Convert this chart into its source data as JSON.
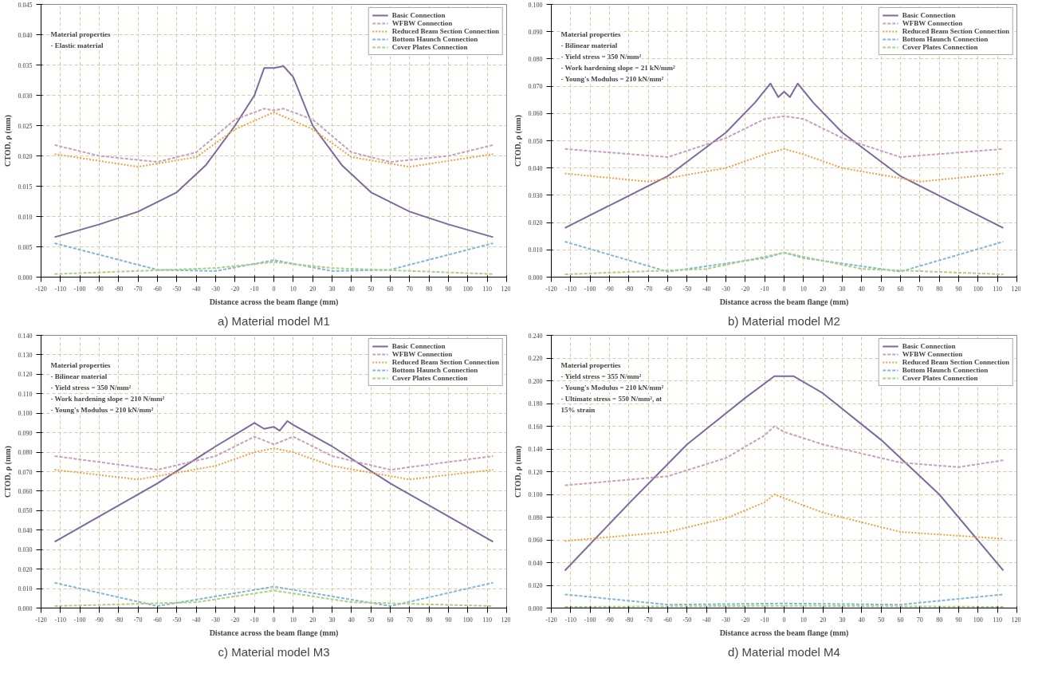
{
  "chart_data": [
    {
      "type": "line",
      "title": "a) Material model M1",
      "xlabel": "Distance across the beam flange (mm)",
      "ylabel": "CTOD, ρ (mm)",
      "annotations": [
        "Material properties",
        "- Elastic material"
      ],
      "xlim": [
        -120,
        120
      ],
      "xticks": [
        -120,
        -110,
        -100,
        -90,
        -80,
        -70,
        -60,
        -50,
        -40,
        -30,
        -20,
        -10,
        0,
        10,
        20,
        30,
        40,
        50,
        60,
        70,
        80,
        90,
        100,
        110,
        120
      ],
      "ylim": [
        0,
        0.045
      ],
      "yticks": [
        {
          "value": 0,
          "label": "0.000"
        },
        {
          "value": 0.005,
          "label": "0.005"
        },
        {
          "value": 0.01,
          "label": "0.010"
        },
        {
          "value": 0.015,
          "label": "0.015"
        },
        {
          "value": 0.02,
          "label": "0.020"
        },
        {
          "value": 0.025,
          "label": "0.025"
        },
        {
          "value": 0.03,
          "label": "0.030"
        },
        {
          "value": 0.035,
          "label": "0.035"
        },
        {
          "value": 0.04,
          "label": "0.040"
        },
        {
          "value": 0.045,
          "label": "0.045"
        }
      ],
      "grid": true,
      "legend": "top right",
      "series": [
        {
          "name": "Basic Connection",
          "color": "#7b6a9b",
          "line_style": "solid",
          "x": [
            -113,
            -90,
            -70,
            -50,
            -35,
            -20,
            -10,
            -5,
            0,
            5,
            10,
            20,
            35,
            50,
            70,
            90,
            113
          ],
          "values": [
            0.0066,
            0.0087,
            0.0108,
            0.014,
            0.0185,
            0.025,
            0.03,
            0.0345,
            0.0345,
            0.0348,
            0.033,
            0.025,
            0.0185,
            0.014,
            0.0108,
            0.0087,
            0.0066
          ]
        },
        {
          "name": "WFBW Connection",
          "color": "#c8a0b8",
          "line_style": "dashed",
          "x": [
            -113,
            -90,
            -60,
            -40,
            -20,
            -5,
            0,
            5,
            20,
            40,
            60,
            90,
            113
          ],
          "values": [
            0.0218,
            0.02,
            0.019,
            0.0206,
            0.026,
            0.0278,
            0.0275,
            0.0278,
            0.026,
            0.0206,
            0.019,
            0.02,
            0.0218
          ]
        },
        {
          "name": "Reduced Beam Section Connection",
          "color": "#f0a040",
          "line_style": "dotted",
          "x": [
            -113,
            -70,
            -40,
            -20,
            0,
            20,
            40,
            70,
            113
          ],
          "values": [
            0.0203,
            0.0182,
            0.0198,
            0.0244,
            0.0272,
            0.0244,
            0.0198,
            0.0182,
            0.0203
          ]
        },
        {
          "name": "Bottom Haunch Connection",
          "color": "#80b8d8",
          "line_style": "dashed",
          "x": [
            -113,
            -60,
            -30,
            0,
            30,
            60,
            113
          ],
          "values": [
            0.0056,
            0.0012,
            0.001,
            0.0028,
            0.001,
            0.0012,
            0.0056
          ]
        },
        {
          "name": "Cover Plates Connection",
          "color": "#a8d080",
          "line_style": "dashed",
          "x": [
            -113,
            -30,
            0,
            30,
            113
          ],
          "values": [
            0.0005,
            0.0015,
            0.0025,
            0.0015,
            0.0005
          ]
        }
      ]
    },
    {
      "type": "line",
      "title": "b) Material model M2",
      "xlabel": "Distance across the beam flange (mm)",
      "ylabel": "CTOD, ρ (mm)",
      "annotations": [
        "Material properties",
        "- Bilinear material",
        "- Yield stress = 350 N/mm²",
        "- Work hardening slope = 21 kN/mm²",
        "- Young's Modulus = 210 kN/mm²"
      ],
      "xlim": [
        -120,
        120
      ],
      "xticks": [
        -120,
        -110,
        -100,
        -90,
        -80,
        -70,
        -60,
        -50,
        -40,
        -30,
        -20,
        -10,
        0,
        10,
        20,
        30,
        40,
        50,
        60,
        70,
        80,
        90,
        100,
        110,
        120
      ],
      "ylim": [
        0,
        0.1
      ],
      "yticks": [
        {
          "value": 0,
          "label": "0.000"
        },
        {
          "value": 0.01,
          "label": "0.010"
        },
        {
          "value": 0.02,
          "label": "0.020"
        },
        {
          "value": 0.03,
          "label": "0.030"
        },
        {
          "value": 0.04,
          "label": "0.040"
        },
        {
          "value": 0.05,
          "label": "0.050"
        },
        {
          "value": 0.06,
          "label": "0.060"
        },
        {
          "value": 0.07,
          "label": "0.070"
        },
        {
          "value": 0.08,
          "label": "0.080"
        },
        {
          "value": 0.09,
          "label": "0.090"
        },
        {
          "value": 0.1,
          "label": "0.100"
        }
      ],
      "grid": true,
      "legend": "top right",
      "series": [
        {
          "name": "Basic Connection",
          "color": "#7b6a9b",
          "line_style": "solid",
          "x": [
            -113,
            -60,
            -30,
            -15,
            -7,
            -3,
            0,
            3,
            7,
            15,
            30,
            60,
            113
          ],
          "values": [
            0.018,
            0.037,
            0.053,
            0.064,
            0.071,
            0.066,
            0.068,
            0.066,
            0.071,
            0.064,
            0.053,
            0.037,
            0.018
          ]
        },
        {
          "name": "WFBW Connection",
          "color": "#c8a0b8",
          "line_style": "dashed",
          "x": [
            -113,
            -60,
            -30,
            -10,
            0,
            10,
            30,
            60,
            113
          ],
          "values": [
            0.047,
            0.044,
            0.051,
            0.058,
            0.059,
            0.058,
            0.051,
            0.044,
            0.047
          ]
        },
        {
          "name": "Reduced Beam Section Connection",
          "color": "#f0a040",
          "line_style": "dotted",
          "x": [
            -113,
            -70,
            -30,
            -10,
            0,
            10,
            30,
            70,
            113
          ],
          "values": [
            0.038,
            0.035,
            0.04,
            0.045,
            0.047,
            0.045,
            0.04,
            0.035,
            0.038
          ]
        },
        {
          "name": "Bottom Haunch Connection",
          "color": "#80b8d8",
          "line_style": "dashed",
          "x": [
            -113,
            -60,
            -10,
            0,
            10,
            60,
            113
          ],
          "values": [
            0.013,
            0.002,
            0.007,
            0.009,
            0.007,
            0.002,
            0.013
          ]
        },
        {
          "name": "Cover Plates Connection",
          "color": "#a8d080",
          "line_style": "dashed",
          "x": [
            -113,
            -40,
            0,
            40,
            113
          ],
          "values": [
            0.001,
            0.003,
            0.009,
            0.003,
            0.001
          ]
        }
      ]
    },
    {
      "type": "line",
      "title": "c) Material model M3",
      "xlabel": "Distance across the beam flange (mm)",
      "ylabel": "CTOD, ρ (mm)",
      "annotations": [
        "Material properties",
        "- Bilinear material",
        "- Yield stress = 350 N/mm²",
        "- Work hardening slope = 210 N/mm²",
        "- Young's Modulus = 210 kN/mm²"
      ],
      "xlim": [
        -120,
        120
      ],
      "xticks": [
        -120,
        -110,
        -100,
        -90,
        -80,
        -70,
        -60,
        -50,
        -40,
        -30,
        -20,
        -10,
        0,
        10,
        20,
        30,
        40,
        50,
        60,
        70,
        80,
        90,
        100,
        110,
        120
      ],
      "ylim": [
        0,
        0.14
      ],
      "yticks": [
        {
          "value": 0,
          "label": "0.000"
        },
        {
          "value": 0.01,
          "label": "0.010"
        },
        {
          "value": 0.02,
          "label": "0.020"
        },
        {
          "value": 0.03,
          "label": "0.030"
        },
        {
          "value": 0.04,
          "label": "0.040"
        },
        {
          "value": 0.05,
          "label": "0.050"
        },
        {
          "value": 0.06,
          "label": "0.060"
        },
        {
          "value": 0.07,
          "label": "0.070"
        },
        {
          "value": 0.08,
          "label": "0.080"
        },
        {
          "value": 0.09,
          "label": "0.090"
        },
        {
          "value": 0.1,
          "label": "0.100"
        },
        {
          "value": 0.11,
          "label": "0.110"
        },
        {
          "value": 0.12,
          "label": "0.120"
        },
        {
          "value": 0.13,
          "label": "0.130"
        },
        {
          "value": 0.14,
          "label": "0.140"
        }
      ],
      "grid": true,
      "legend": "top right",
      "series": [
        {
          "name": "Basic Connection",
          "color": "#7b6a9b",
          "line_style": "solid",
          "x": [
            -113,
            -60,
            -30,
            -10,
            -5,
            0,
            3,
            7,
            10,
            30,
            60,
            113
          ],
          "values": [
            0.034,
            0.064,
            0.083,
            0.095,
            0.092,
            0.093,
            0.091,
            0.096,
            0.094,
            0.083,
            0.064,
            0.034
          ]
        },
        {
          "name": "WFBW Connection",
          "color": "#c8a0b8",
          "line_style": "dashed",
          "x": [
            -113,
            -60,
            -30,
            -10,
            0,
            10,
            30,
            60,
            113
          ],
          "values": [
            0.078,
            0.071,
            0.078,
            0.088,
            0.084,
            0.088,
            0.078,
            0.071,
            0.078
          ]
        },
        {
          "name": "Reduced Beam Section Connection",
          "color": "#f0a040",
          "line_style": "dotted",
          "x": [
            -113,
            -70,
            -30,
            -10,
            0,
            10,
            30,
            70,
            113
          ],
          "values": [
            0.071,
            0.066,
            0.073,
            0.08,
            0.082,
            0.08,
            0.073,
            0.066,
            0.071
          ]
        },
        {
          "name": "Bottom Haunch Connection",
          "color": "#80b8d8",
          "line_style": "dashed",
          "x": [
            -113,
            -60,
            0,
            60,
            113
          ],
          "values": [
            0.013,
            0.001,
            0.011,
            0.001,
            0.013
          ]
        },
        {
          "name": "Cover Plates Connection",
          "color": "#a8d080",
          "line_style": "dashed",
          "x": [
            -113,
            -40,
            0,
            40,
            113
          ],
          "values": [
            0.001,
            0.003,
            0.009,
            0.003,
            0.001
          ]
        }
      ]
    },
    {
      "type": "line",
      "title": "d) Material model M4",
      "xlabel": "Distance across the beam flange (mm)",
      "ylabel": "CTOD, ρ (mm)",
      "annotations": [
        "Material properties",
        "- Yield stress = 355 N/mm²",
        "- Young's Modulus = 210 kN/mm²",
        "- Ultimate stress = 550 N/mm², at",
        "15% strain"
      ],
      "xlim": [
        -120,
        120
      ],
      "xticks": [
        -120,
        -110,
        -100,
        -90,
        -80,
        -70,
        -60,
        -50,
        -40,
        -30,
        -20,
        -10,
        0,
        10,
        20,
        30,
        40,
        50,
        60,
        70,
        80,
        90,
        100,
        110,
        120
      ],
      "ylim": [
        0,
        0.24
      ],
      "yticks": [
        {
          "value": 0,
          "label": "0.000"
        },
        {
          "value": 0.02,
          "label": "0.020"
        },
        {
          "value": 0.04,
          "label": "0.040"
        },
        {
          "value": 0.06,
          "label": "0.060"
        },
        {
          "value": 0.08,
          "label": "0.080"
        },
        {
          "value": 0.1,
          "label": "0.100"
        },
        {
          "value": 0.12,
          "label": "0.120"
        },
        {
          "value": 0.14,
          "label": "0.140"
        },
        {
          "value": 0.16,
          "label": "0.160"
        },
        {
          "value": 0.18,
          "label": "0.180"
        },
        {
          "value": 0.2,
          "label": "0.200"
        },
        {
          "value": 0.22,
          "label": "0.220"
        },
        {
          "value": 0.24,
          "label": "0.240"
        }
      ],
      "grid": true,
      "legend": "top right",
      "series": [
        {
          "name": "Basic Connection",
          "color": "#7b6a9b",
          "line_style": "solid",
          "x": [
            -113,
            -80,
            -50,
            -20,
            -5,
            5,
            20,
            50,
            80,
            113
          ],
          "values": [
            0.033,
            0.092,
            0.144,
            0.185,
            0.204,
            0.204,
            0.189,
            0.148,
            0.1,
            0.033
          ]
        },
        {
          "name": "WFBW Connection",
          "color": "#c8a0b8",
          "line_style": "dashed",
          "x": [
            -113,
            -60,
            -30,
            -10,
            -5,
            0,
            20,
            60,
            90,
            113
          ],
          "values": [
            0.108,
            0.116,
            0.132,
            0.152,
            0.16,
            0.155,
            0.144,
            0.128,
            0.124,
            0.13
          ]
        },
        {
          "name": "Reduced Beam Section Connection",
          "color": "#f0a040",
          "line_style": "dotted",
          "x": [
            -113,
            -60,
            -30,
            -10,
            -5,
            20,
            60,
            113
          ],
          "values": [
            0.059,
            0.067,
            0.079,
            0.093,
            0.1,
            0.084,
            0.067,
            0.061
          ]
        },
        {
          "name": "Bottom Haunch Connection",
          "color": "#80b8d8",
          "line_style": "dashed",
          "x": [
            -113,
            -60,
            0,
            60,
            113
          ],
          "values": [
            0.012,
            0.003,
            0.004,
            0.003,
            0.012
          ]
        },
        {
          "name": "Cover Plates Connection",
          "color": "#a8d080",
          "line_style": "dashed",
          "x": [
            -113,
            0,
            113
          ],
          "values": [
            0.001,
            0.002,
            0.001
          ]
        }
      ]
    }
  ]
}
